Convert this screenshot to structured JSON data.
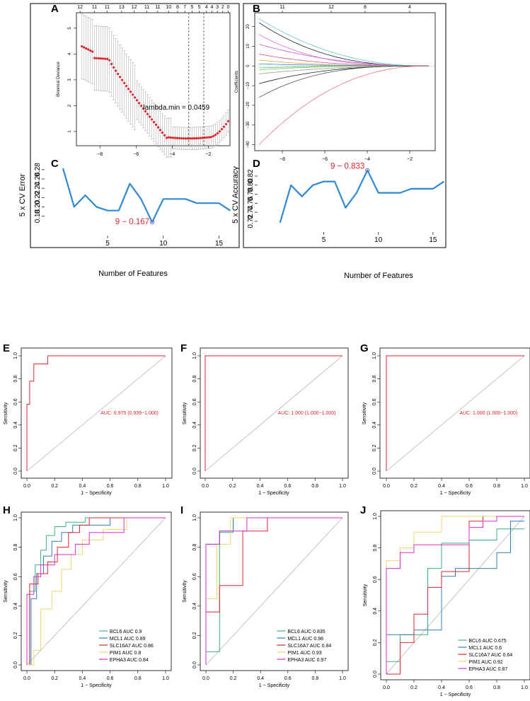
{
  "panels": [
    {
      "id": "A",
      "type": "lasso_cv",
      "letter": "A",
      "ylabel": "Binomial Deviance",
      "xlabel": "",
      "xlim": [
        -9.3,
        -0.8
      ],
      "ylim": [
        0.45,
        5.6
      ],
      "xticks": [
        -8,
        -6,
        -4,
        -2
      ],
      "yticks": [
        1,
        2,
        3,
        4,
        5
      ],
      "top_ticks": [
        {
          "x": -9.1,
          "label": "12"
        },
        {
          "x": -8.3,
          "label": "11"
        },
        {
          "x": -7.6,
          "label": "11"
        },
        {
          "x": -6.8,
          "label": "13"
        },
        {
          "x": -6.1,
          "label": "12"
        },
        {
          "x": -5.4,
          "label": "11"
        },
        {
          "x": -4.8,
          "label": "11"
        },
        {
          "x": -4.2,
          "label": "10"
        },
        {
          "x": -3.7,
          "label": "8"
        },
        {
          "x": -3.3,
          "label": "7"
        },
        {
          "x": -2.9,
          "label": "5"
        },
        {
          "x": -2.5,
          "label": "5"
        },
        {
          "x": -2.1,
          "label": "4"
        },
        {
          "x": -1.8,
          "label": "4"
        },
        {
          "x": -1.5,
          "label": "3"
        },
        {
          "x": -1.2,
          "label": "2"
        },
        {
          "x": -0.9,
          "label": "0"
        }
      ],
      "vlines": [
        -3.08,
        -2.25
      ],
      "annotation": "lambda.min = 0.0459"
    },
    {
      "id": "B",
      "type": "lasso_path",
      "letter": "B",
      "ylabel": "Coefficients",
      "xlim": [
        -9.3,
        -0.8
      ],
      "ylim": [
        -43,
        27
      ],
      "xticks": [
        -8,
        -6,
        -4,
        -2
      ],
      "yticks": [
        -40,
        -30,
        -20,
        -10,
        0,
        10,
        20
      ],
      "top_ticks": [
        {
          "x": -8.0,
          "label": "11"
        },
        {
          "x": -5.7,
          "label": "12"
        },
        {
          "x": -4.1,
          "label": "8"
        },
        {
          "x": -2.0,
          "label": "4"
        }
      ],
      "paths": [
        {
          "start": 24,
          "color": "#5bc3e0"
        },
        {
          "start": 22,
          "color": "#222222"
        },
        {
          "start": 16,
          "color": "#e26bd6"
        },
        {
          "start": 11,
          "color": "#c25bd1"
        },
        {
          "start": 6,
          "color": "#e04a8a"
        },
        {
          "start": 3,
          "color": "#e0a83a"
        },
        {
          "start": 1,
          "color": "#3a8ad6"
        },
        {
          "start": -1,
          "color": "#5bc37a"
        },
        {
          "start": -2,
          "color": "#7ad65b"
        },
        {
          "start": -4,
          "color": "#999999"
        },
        {
          "start": -9,
          "color": "#222222"
        },
        {
          "start": -16,
          "color": "#555555"
        },
        {
          "start": -40,
          "color": "#f07080"
        }
      ]
    },
    {
      "id": "C",
      "type": "line",
      "letter": "C",
      "ylabel": "5 x CV Error",
      "xlim": [
        0.3,
        16.3
      ],
      "ylim": [
        0.158,
        0.292
      ],
      "xticks": [
        5,
        10,
        15
      ],
      "yticks": [
        0.18,
        0.2,
        0.22,
        0.24,
        0.26,
        0.28
      ],
      "x": [
        1,
        2,
        3,
        4,
        5,
        6,
        7,
        8,
        9,
        10,
        11,
        12,
        13,
        14,
        15,
        16
      ],
      "y": [
        0.283,
        0.2,
        0.225,
        0.2,
        0.192,
        0.192,
        0.25,
        0.217,
        0.167,
        0.217,
        0.217,
        0.217,
        0.208,
        0.208,
        0.208,
        0.192
      ],
      "highlight": {
        "x": 9,
        "y": 0.167,
        "label": "9 − 0.167"
      }
    },
    {
      "id": "D",
      "type": "line",
      "letter": "D",
      "ylabel": "5 x CV Accuracy",
      "xlim": [
        0.3,
        16.3
      ],
      "ylim": [
        0.712,
        0.845
      ],
      "xticks": [
        5,
        10,
        15
      ],
      "yticks": [
        0.72,
        0.74,
        0.76,
        0.78,
        0.8,
        0.82
      ],
      "x": [
        1,
        2,
        3,
        4,
        5,
        6,
        7,
        8,
        9,
        10,
        11,
        12,
        13,
        14,
        15,
        16
      ],
      "y": [
        0.717,
        0.8,
        0.775,
        0.8,
        0.808,
        0.808,
        0.75,
        0.783,
        0.833,
        0.783,
        0.783,
        0.783,
        0.792,
        0.792,
        0.792,
        0.808
      ],
      "highlight": {
        "x": 9,
        "y": 0.833,
        "label": "9 − 0.833"
      }
    },
    {
      "id": "E",
      "type": "roc_single",
      "letter": "E",
      "xlabel": "1 − Specificity",
      "ylabel": "Sensitivity",
      "auc": "AUC: 0.975 (0.939−1.000)",
      "fpr": [
        0,
        0,
        0.02,
        0.02,
        0.05,
        0.05,
        0.15,
        0.15,
        1
      ],
      "tpr": [
        0,
        0.58,
        0.58,
        0.78,
        0.78,
        0.93,
        0.93,
        1,
        1
      ]
    },
    {
      "id": "F",
      "type": "roc_single",
      "letter": "F",
      "xlabel": "1 − Specificity",
      "ylabel": "Sensitivity",
      "auc": "AUC: 1.000 (1.000−1.000)",
      "fpr": [
        0,
        0,
        1
      ],
      "tpr": [
        0,
        1,
        1
      ]
    },
    {
      "id": "G",
      "type": "roc_single",
      "letter": "G",
      "xlabel": "1 − Specificity",
      "ylabel": "Sensitivity",
      "auc": "AUC: 1.000 (1.000−1.000)",
      "fpr": [
        0,
        0,
        1
      ],
      "tpr": [
        0,
        1,
        1
      ]
    },
    {
      "id": "H",
      "type": "roc_multi",
      "letter": "H",
      "xlabel": "1 − Specificity",
      "ylabel": "Sensitivity",
      "series": [
        {
          "name": "BCL6",
          "legend": "BCL6 AUC 0.9",
          "color": "#3bb37a",
          "fpr": [
            0,
            0.02,
            0.02,
            0.06,
            0.06,
            0.1,
            0.1,
            0.14,
            0.14,
            0.2,
            0.2,
            0.28,
            0.28,
            0.42,
            0.42,
            1
          ],
          "tpr": [
            0,
            0,
            0.5,
            0.5,
            0.68,
            0.68,
            0.78,
            0.78,
            0.88,
            0.88,
            0.94,
            0.94,
            0.97,
            0.97,
            1,
            1
          ]
        },
        {
          "name": "MCL1",
          "legend": "MCL1 AUC 0.89",
          "color": "#2f7fc1",
          "fpr": [
            0,
            0.03,
            0.03,
            0.07,
            0.07,
            0.12,
            0.12,
            0.18,
            0.18,
            0.25,
            0.25,
            0.33,
            0.33,
            0.6,
            0.6,
            1
          ],
          "tpr": [
            0,
            0,
            0.45,
            0.45,
            0.62,
            0.62,
            0.74,
            0.74,
            0.84,
            0.84,
            0.9,
            0.9,
            0.95,
            0.95,
            1,
            1
          ]
        },
        {
          "name": "SLC16A7",
          "legend": "SLC16A7 AUC 0.86",
          "color": "#e0252e",
          "fpr": [
            0,
            0.02,
            0.02,
            0.08,
            0.08,
            0.15,
            0.15,
            0.22,
            0.22,
            0.3,
            0.3,
            0.38,
            0.38,
            0.45,
            0.45,
            1
          ],
          "tpr": [
            0,
            0,
            0.55,
            0.55,
            0.62,
            0.62,
            0.7,
            0.7,
            0.8,
            0.8,
            0.9,
            0.9,
            0.95,
            0.95,
            1,
            1
          ]
        },
        {
          "name": "PIM1",
          "legend": "PIM1 AUC 0.8",
          "color": "#f2d66b",
          "fpr": [
            0,
            0.05,
            0.05,
            0.1,
            0.1,
            0.18,
            0.18,
            0.25,
            0.25,
            0.32,
            0.32,
            0.4,
            0.4,
            0.55,
            0.55,
            0.72,
            0.72,
            1
          ],
          "tpr": [
            0,
            0,
            0.1,
            0.1,
            0.38,
            0.38,
            0.5,
            0.5,
            0.65,
            0.65,
            0.75,
            0.75,
            0.85,
            0.85,
            0.92,
            0.92,
            1,
            1
          ]
        },
        {
          "name": "EPHA3",
          "legend": "EPHA3 AUC 0.84",
          "color": "#d62fd1",
          "fpr": [
            0,
            0,
            0.05,
            0.05,
            0.1,
            0.1,
            0.2,
            0.2,
            0.35,
            0.35,
            0.45,
            0.45,
            0.7,
            0.7,
            1
          ],
          "tpr": [
            0,
            0.48,
            0.48,
            0.6,
            0.6,
            0.68,
            0.68,
            0.75,
            0.75,
            0.82,
            0.82,
            0.9,
            0.9,
            1,
            1
          ]
        }
      ]
    },
    {
      "id": "I",
      "type": "roc_multi",
      "letter": "I",
      "xlabel": "1 − Specificity",
      "ylabel": "Sensitivity",
      "series": [
        {
          "name": "BCL6",
          "legend": "BCL6 AUC 0.835",
          "color": "#3bb37a",
          "fpr": [
            0,
            0,
            0.1,
            0.1,
            0.2,
            0.2,
            1
          ],
          "tpr": [
            0,
            0.09,
            0.09,
            0.9,
            0.9,
            1,
            1
          ]
        },
        {
          "name": "MCL1",
          "legend": "MCL1 AUC 0.98",
          "color": "#2f7fc1",
          "fpr": [
            0,
            0,
            0.1,
            0.1,
            0.2,
            0.2,
            1
          ],
          "tpr": [
            0,
            0.82,
            0.82,
            0.91,
            0.91,
            1,
            1
          ]
        },
        {
          "name": "SLC16A7",
          "legend": "SLC16A7 AUC 0.84",
          "color": "#e0252e",
          "fpr": [
            0,
            0,
            0.1,
            0.1,
            0.27,
            0.27,
            0.45,
            0.45,
            1
          ],
          "tpr": [
            0,
            0.36,
            0.36,
            0.54,
            0.54,
            0.91,
            0.91,
            1,
            1
          ]
        },
        {
          "name": "PIM1",
          "legend": "PIM1 AUC 0.93",
          "color": "#f2d66b",
          "fpr": [
            0,
            0,
            0.08,
            0.08,
            0.18,
            0.18,
            1
          ],
          "tpr": [
            0,
            0.45,
            0.45,
            0.82,
            0.82,
            1,
            1
          ]
        },
        {
          "name": "EPHA3",
          "legend": "EPHA3 AUC 0.97",
          "color": "#d62fd1",
          "fpr": [
            0,
            0,
            0.1,
            0.1,
            0.3,
            0.3,
            1
          ],
          "tpr": [
            0,
            0.82,
            0.82,
            0.91,
            0.91,
            1,
            1
          ]
        }
      ]
    },
    {
      "id": "J",
      "type": "roc_multi",
      "letter": "J",
      "xlabel": "1 − Specificity",
      "ylabel": "Sensitivity",
      "series": [
        {
          "name": "BCL6",
          "legend": "BCL6 AUC 0.675",
          "color": "#3bb37a",
          "fpr": [
            0,
            0,
            0.1,
            0.1,
            0.3,
            0.3,
            0.4,
            0.4,
            0.6,
            0.6,
            0.8,
            0.8,
            1
          ],
          "tpr": [
            0,
            0.08,
            0.08,
            0.25,
            0.25,
            0.67,
            0.67,
            0.83,
            0.83,
            0.85,
            0.85,
            0.92,
            0.92
          ]
        },
        {
          "name": "MCL1",
          "legend": "MCL1 AUC 0.6",
          "color": "#2f7fc1",
          "fpr": [
            0,
            0,
            0.2,
            0.2,
            0.4,
            0.4,
            0.5,
            0.5,
            0.8,
            0.8,
            0.9,
            0.9,
            1
          ],
          "tpr": [
            0,
            0.25,
            0.25,
            0.28,
            0.28,
            0.62,
            0.62,
            0.67,
            0.67,
            0.77,
            0.77,
            0.97,
            0.97
          ]
        },
        {
          "name": "SLC16A7",
          "legend": "SLC16A7 AUC 0.64",
          "color": "#e0252e",
          "fpr": [
            0,
            0.1,
            0.1,
            0.2,
            0.2,
            0.3,
            0.3,
            0.4,
            0.4,
            0.6,
            0.6,
            0.7,
            0.7,
            1
          ],
          "tpr": [
            0,
            0,
            0.2,
            0.2,
            0.38,
            0.38,
            0.55,
            0.55,
            0.65,
            0.65,
            0.97,
            0.97,
            1,
            1
          ]
        },
        {
          "name": "PIM1",
          "legend": "PIM1 AUC 0.92",
          "color": "#f2d66b",
          "fpr": [
            0,
            0,
            0.1,
            0.1,
            0.2,
            0.2,
            0.4,
            0.4,
            0.6,
            0.6,
            1
          ],
          "tpr": [
            0,
            0.72,
            0.72,
            0.8,
            0.8,
            0.9,
            0.9,
            1,
            1,
            1,
            1
          ]
        },
        {
          "name": "EPHA3",
          "legend": "EPHA3 AUC 0.87",
          "color": "#d62fd1",
          "fpr": [
            0,
            0,
            0.1,
            0.1,
            0.2,
            0.2,
            0.6,
            0.6,
            0.7,
            0.7,
            0.8,
            0.8,
            1
          ],
          "tpr": [
            0,
            0.67,
            0.67,
            0.77,
            0.77,
            0.82,
            0.82,
            0.93,
            0.93,
            0.97,
            0.97,
            1,
            1
          ]
        }
      ]
    }
  ],
  "shared": {
    "features_xlabel": "Number of Features",
    "roc_ticks": [
      "0.0",
      "0.2",
      "0.4",
      "0.6",
      "0.8",
      "1.0"
    ]
  },
  "chart_data": [
    {
      "type": "line",
      "title": "C",
      "xlabel": "Number of Features",
      "ylabel": "5 x CV Error",
      "x": [
        1,
        2,
        3,
        4,
        5,
        6,
        7,
        8,
        9,
        10,
        11,
        12,
        13,
        14,
        15,
        16
      ],
      "y": [
        0.283,
        0.2,
        0.225,
        0.2,
        0.192,
        0.192,
        0.25,
        0.217,
        0.167,
        0.217,
        0.217,
        0.217,
        0.208,
        0.208,
        0.208,
        0.192
      ]
    },
    {
      "type": "line",
      "title": "D",
      "xlabel": "Number of Features",
      "ylabel": "5 x CV Accuracy",
      "x": [
        1,
        2,
        3,
        4,
        5,
        6,
        7,
        8,
        9,
        10,
        11,
        12,
        13,
        14,
        15,
        16
      ],
      "y": [
        0.717,
        0.8,
        0.775,
        0.8,
        0.808,
        0.808,
        0.75,
        0.783,
        0.833,
        0.783,
        0.783,
        0.783,
        0.792,
        0.792,
        0.792,
        0.808
      ]
    },
    {
      "type": "line",
      "title": "E",
      "xlabel": "1 − Specificity",
      "ylabel": "Sensitivity",
      "annotation": "AUC: 0.975 (0.939−1.000)"
    },
    {
      "type": "line",
      "title": "F",
      "xlabel": "1 − Specificity",
      "ylabel": "Sensitivity",
      "annotation": "AUC: 1.000 (1.000−1.000)"
    },
    {
      "type": "line",
      "title": "G",
      "xlabel": "1 − Specificity",
      "ylabel": "Sensitivity",
      "annotation": "AUC: 1.000 (1.000−1.000)"
    },
    {
      "type": "line",
      "title": "H",
      "series": [
        "BCL6 AUC 0.9",
        "MCL1 AUC 0.89",
        "SLC16A7 AUC 0.86",
        "PIM1 AUC 0.8",
        "EPHA3 AUC 0.84"
      ]
    },
    {
      "type": "line",
      "title": "I",
      "series": [
        "BCL6 AUC 0.835",
        "MCL1 AUC 0.98",
        "SLC16A7 AUC 0.84",
        "PIM1 AUC 0.93",
        "EPHA3 AUC 0.97"
      ]
    },
    {
      "type": "line",
      "title": "J",
      "series": [
        "BCL6 AUC 0.675",
        "MCL1 AUC 0.6",
        "SLC16A7 AUC 0.64",
        "PIM1 AUC 0.92",
        "EPHA3 AUC 0.87"
      ]
    }
  ]
}
